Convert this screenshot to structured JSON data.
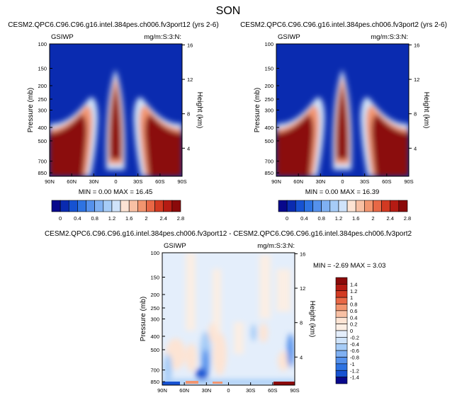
{
  "figure_title": "SON",
  "chart_data": [
    {
      "type": "heatmap",
      "title": "CESM2.QPC6.C96.C96.g16.intel.384pes.ch006.fv3port12 (yrs 2-6)",
      "left_label": "GSIWP",
      "right_label": "mg/m:S:3:N:",
      "ylabel": "Pressure (mb)",
      "ylabel_right": "Height (km)",
      "x_ticks": [
        "90N",
        "60N",
        "30N",
        "0",
        "30S",
        "60S",
        "90S"
      ],
      "x_values": [
        90,
        60,
        30,
        0,
        -30,
        -60,
        -90
      ],
      "y_ticks": [
        "100",
        "150",
        "200",
        "250",
        "300",
        "400",
        "500",
        "700",
        "850"
      ],
      "y_values": [
        100,
        150,
        200,
        250,
        300,
        400,
        500,
        700,
        850
      ],
      "y_range": [
        100,
        900
      ],
      "height_ticks": [
        "16",
        "12",
        "8",
        "4"
      ],
      "height_values": [
        16,
        12,
        8,
        4
      ],
      "stats_label": "MIN =  0.00  MAX = 16.45",
      "min": 0.0,
      "max": 16.45
    },
    {
      "type": "heatmap",
      "title": "CESM2.QPC6.C96.C96.g16.intel.384pes.ch006.fv3port2 (yrs 2-6)",
      "left_label": "GSIWP",
      "right_label": "mg/m:S:3:N:",
      "ylabel": "Pressure (mb)",
      "ylabel_right": "Height (km)",
      "x_ticks": [
        "90N",
        "60N",
        "30N",
        "0",
        "30S",
        "60S",
        "90S"
      ],
      "x_values": [
        90,
        60,
        30,
        0,
        -30,
        -60,
        -90
      ],
      "y_ticks": [
        "100",
        "150",
        "200",
        "250",
        "300",
        "400",
        "500",
        "700",
        "850"
      ],
      "y_values": [
        100,
        150,
        200,
        250,
        300,
        400,
        500,
        700,
        850
      ],
      "y_range": [
        100,
        900
      ],
      "height_ticks": [
        "16",
        "12",
        "8",
        "4"
      ],
      "height_values": [
        16,
        12,
        8,
        4
      ],
      "stats_label": "MIN =  0.00  MAX = 16.39",
      "min": 0.0,
      "max": 16.39
    },
    {
      "type": "heatmap",
      "title": "CESM2.QPC6.C96.C96.g16.intel.384pes.ch006.fv3port12 - CESM2.QPC6.C96.C96.g16.intel.384pes.ch006.fv3port2",
      "left_label": "GSIWP",
      "right_label": "mg/m:S:3:N:",
      "ylabel": "Pressure (mb)",
      "ylabel_right": "Height (km)",
      "x_ticks": [
        "90N",
        "60N",
        "30N",
        "0",
        "30S",
        "60S",
        "90S"
      ],
      "x_values": [
        90,
        60,
        30,
        0,
        -30,
        -60,
        -90
      ],
      "y_ticks": [
        "100",
        "150",
        "200",
        "250",
        "300",
        "400",
        "500",
        "700",
        "850"
      ],
      "y_values": [
        100,
        150,
        200,
        250,
        300,
        400,
        500,
        700,
        850
      ],
      "y_range": [
        100,
        900
      ],
      "height_ticks": [
        "16",
        "12",
        "8",
        "4"
      ],
      "height_values": [
        16,
        12,
        8,
        4
      ],
      "stats_label": "MIN = -2.69  MAX =  3.03",
      "min": -2.69,
      "max": 3.03
    }
  ],
  "colorbar_top": {
    "labels": [
      "0",
      "0.4",
      "0.8",
      "1.2",
      "1.6",
      "2",
      "2.4",
      "2.8"
    ],
    "colors": [
      "#08088c",
      "#0a2bb0",
      "#1652d2",
      "#2e73e2",
      "#5591ec",
      "#7fb0f2",
      "#a6ccf7",
      "#cfe3fa",
      "#fde4d4",
      "#f8c0a4",
      "#f2956f",
      "#e86846",
      "#d23a22",
      "#b51b13",
      "#8b0a0a"
    ]
  },
  "colorbar_bottom": {
    "labels": [
      "1.4",
      "1.2",
      "1",
      "0.8",
      "0.6",
      "0.4",
      "0.2",
      "0",
      "-0.2",
      "-0.4",
      "-0.6",
      "-0.8",
      "-1",
      "-1.2",
      "-1.4"
    ],
    "colors": [
      "#8b0a0a",
      "#b51b13",
      "#d23a22",
      "#e86846",
      "#f2956f",
      "#f8c0a4",
      "#fde4d4",
      "#fbeee4",
      "#e4eefb",
      "#cfe3fa",
      "#a6ccf7",
      "#7fb0f2",
      "#5591ec",
      "#2e73e2",
      "#1652d2",
      "#08088c"
    ]
  }
}
